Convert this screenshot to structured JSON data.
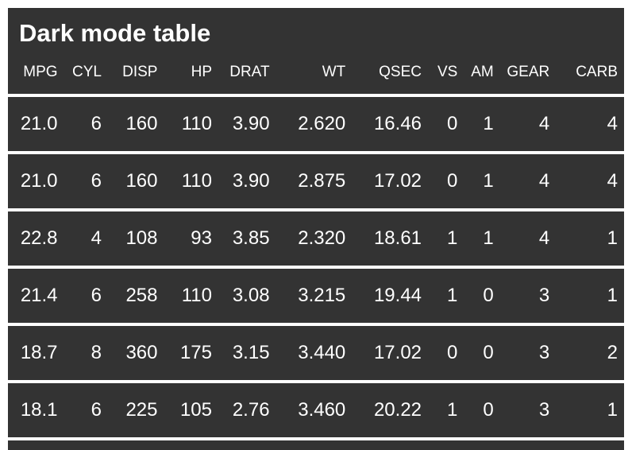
{
  "page": {
    "title": "Dark mode table"
  },
  "colors": {
    "card_background": "#333333",
    "text": "#ffffff",
    "separator": "#ffffff",
    "page_background": "#ffffff"
  },
  "chart_data": {
    "type": "table",
    "title": "Dark mode table",
    "columns": [
      "MPG",
      "CYL",
      "DISP",
      "HP",
      "DRAT",
      "WT",
      "QSEC",
      "VS",
      "AM",
      "GEAR",
      "CARB"
    ],
    "rows": [
      [
        "21.0",
        "6",
        "160",
        "110",
        "3.90",
        "2.620",
        "16.46",
        "0",
        "1",
        "4",
        "4"
      ],
      [
        "21.0",
        "6",
        "160",
        "110",
        "3.90",
        "2.875",
        "17.02",
        "0",
        "1",
        "4",
        "4"
      ],
      [
        "22.8",
        "4",
        "108",
        "93",
        "3.85",
        "2.320",
        "18.61",
        "1",
        "1",
        "4",
        "1"
      ],
      [
        "21.4",
        "6",
        "258",
        "110",
        "3.08",
        "3.215",
        "19.44",
        "1",
        "0",
        "3",
        "1"
      ],
      [
        "18.7",
        "8",
        "360",
        "175",
        "3.15",
        "3.440",
        "17.02",
        "0",
        "0",
        "3",
        "2"
      ],
      [
        "18.1",
        "6",
        "225",
        "105",
        "2.76",
        "3.460",
        "20.22",
        "1",
        "0",
        "3",
        "1"
      ]
    ],
    "layout": {
      "theme": "dark",
      "cell_alignment": "right",
      "row_separator": "white"
    }
  }
}
